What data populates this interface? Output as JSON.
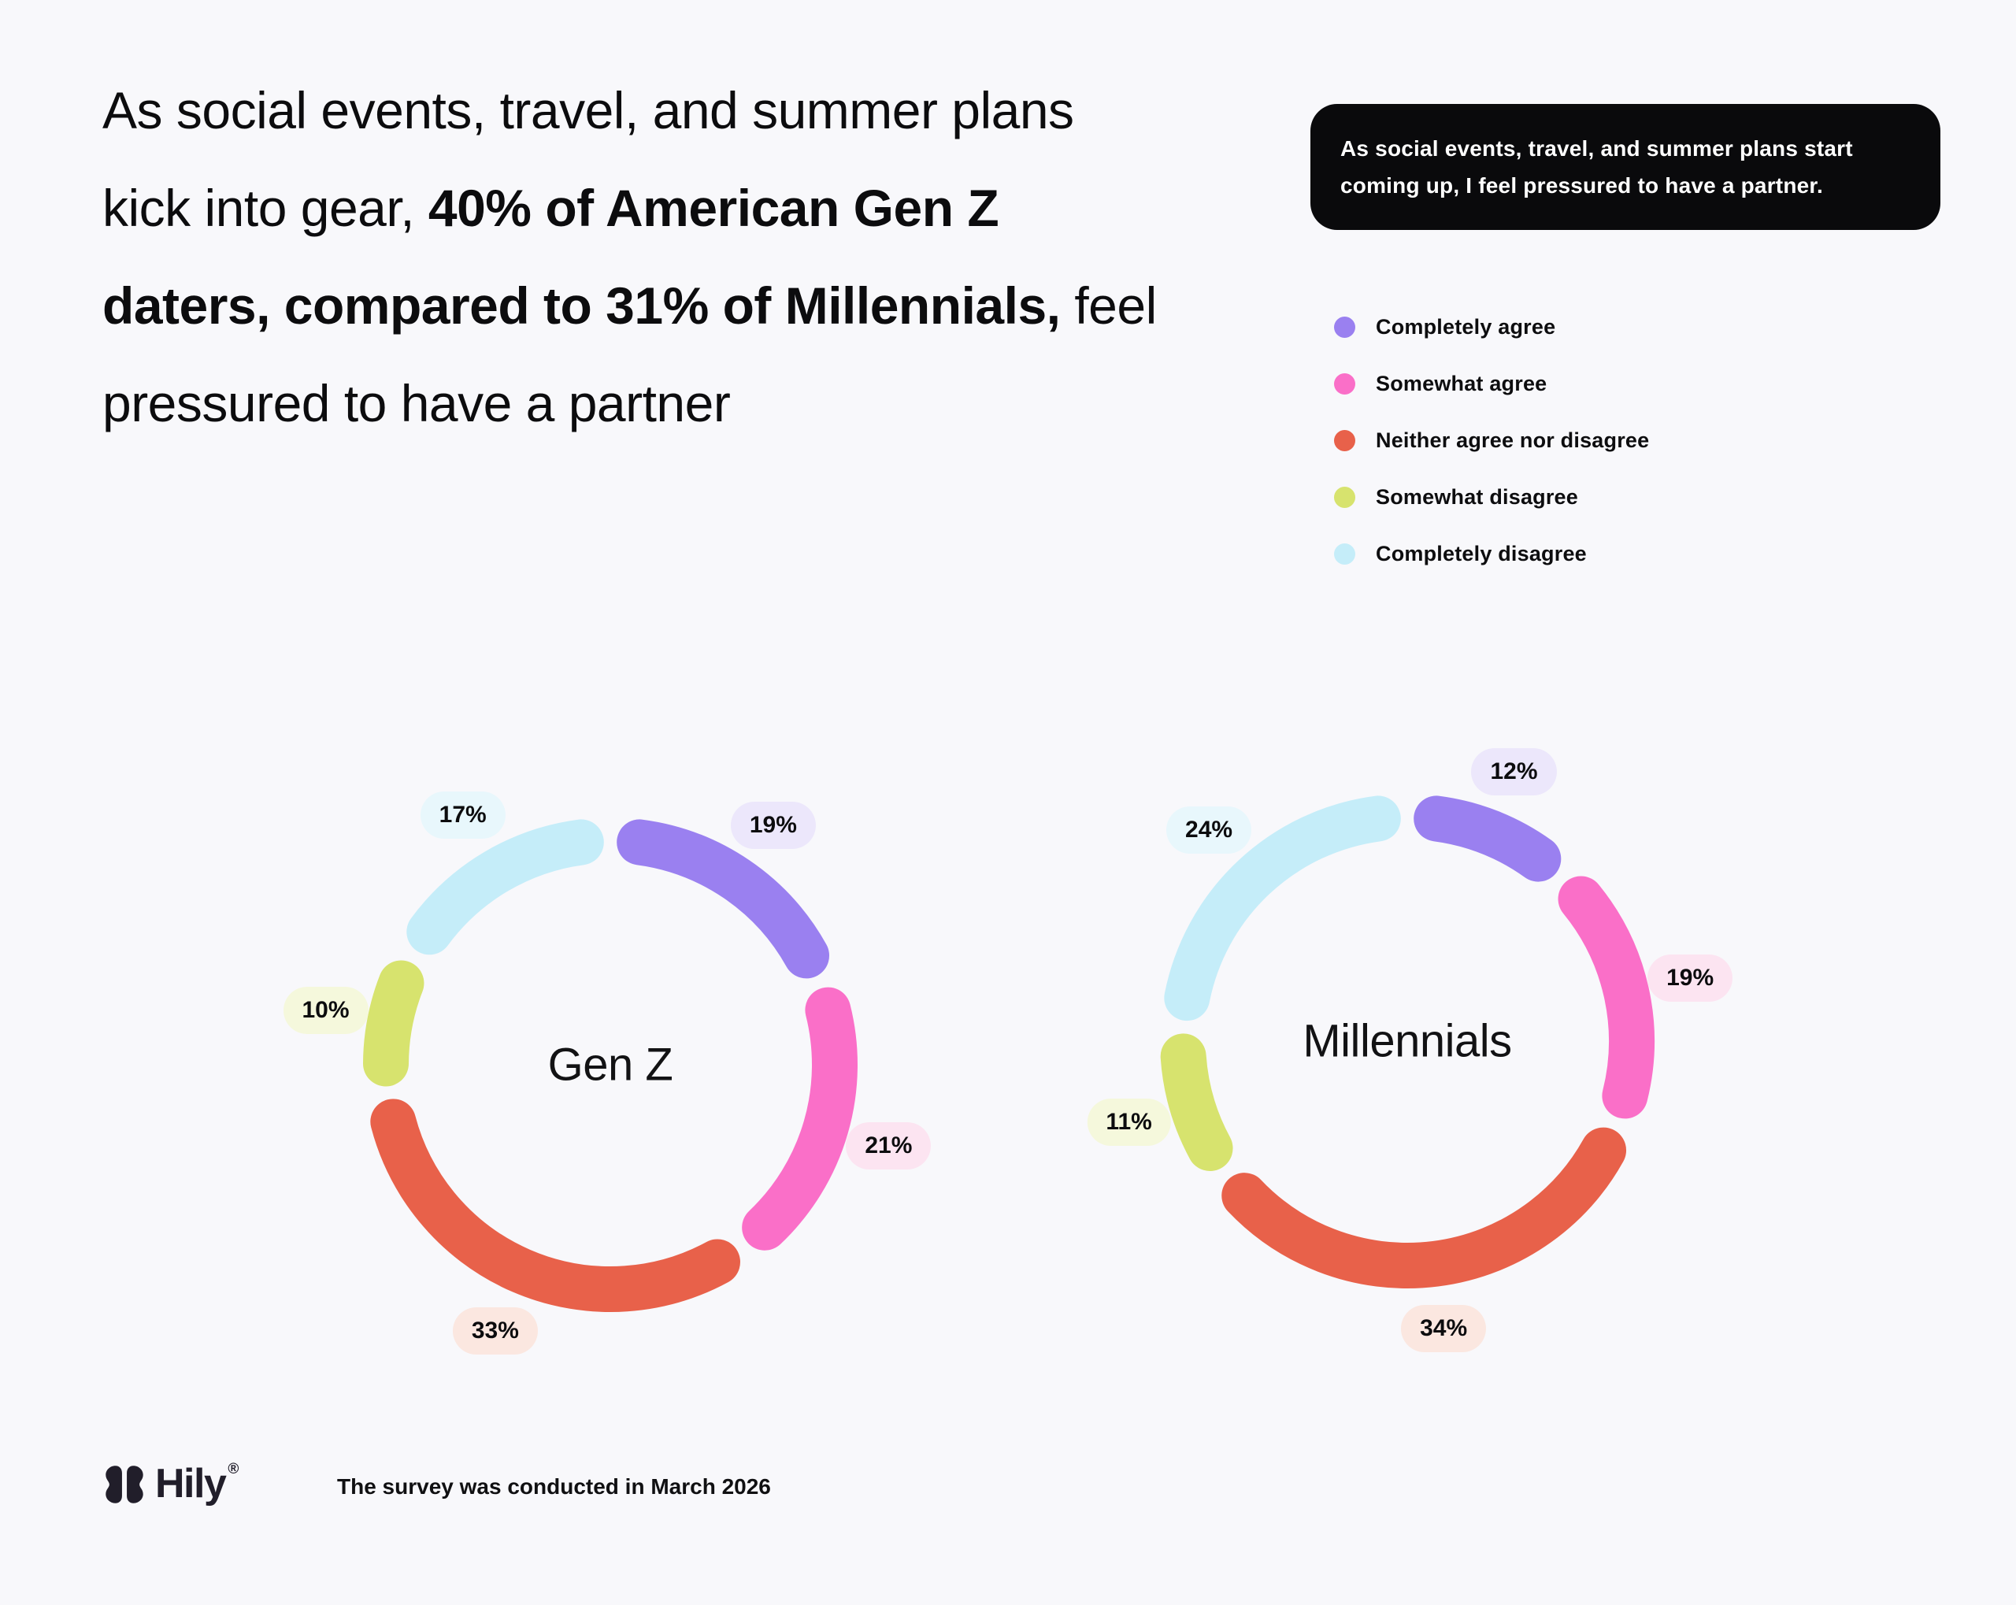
{
  "page": {
    "background": "#f8f8fb",
    "text_color": "#0c0c0e"
  },
  "headline": {
    "segments": [
      {
        "text": "As social events, travel, and summer plans kick into gear, ",
        "bold": false
      },
      {
        "text": "40% of American Gen Z daters, compared to 31% of Millennials,",
        "bold": true
      },
      {
        "text": " feel pressured to have a partner",
        "bold": false
      }
    ]
  },
  "quote": {
    "text": "As social events, travel, and summer plans start coming up, I feel pressured to have a partner.",
    "background": "#0a0a0c",
    "text_color": "#ffffff"
  },
  "legend": {
    "items": [
      {
        "label": "Completely agree",
        "color": "#9a80f0"
      },
      {
        "label": "Somewhat agree",
        "color": "#fa6fc8"
      },
      {
        "label": "Neither agree nor disagree",
        "color": "#e8614a"
      },
      {
        "label": "Somewhat disagree",
        "color": "#d7e36e"
      },
      {
        "label": "Completely disagree",
        "color": "#c5edf9"
      }
    ]
  },
  "chart_data": {
    "type": "donut",
    "categories": [
      "Completely agree",
      "Somewhat agree",
      "Neither agree nor disagree",
      "Somewhat disagree",
      "Completely disagree"
    ],
    "segment_colors": [
      "#9a80f0",
      "#fa6fc8",
      "#e8614a",
      "#d7e36e",
      "#c5edf9"
    ],
    "badge_tints": [
      "#ece7fb",
      "#fce4f1",
      "#fbe7e0",
      "#f5f8dc",
      "#e8f7fc"
    ],
    "charts": [
      {
        "slug": "gen-z",
        "title": "Gen Z",
        "values": [
          19,
          21,
          33,
          10,
          17
        ],
        "labels": [
          "19%",
          "21%",
          "33%",
          "10%",
          "17%"
        ]
      },
      {
        "slug": "millennials",
        "title": "Millennials",
        "values": [
          12,
          19,
          34,
          11,
          24
        ],
        "labels": [
          "12%",
          "19%",
          "34%",
          "11%",
          "24%"
        ]
      }
    ],
    "layout": {
      "size": 900,
      "ring_radius": 285,
      "ring_width": 58,
      "badge_radius": 368,
      "gap_trim_deg": 7.5,
      "start_angle_deg": 0,
      "legend_position": "top-right",
      "grid": false
    }
  },
  "footer": {
    "brand": "Hily",
    "registered": "®",
    "note": "The survey was conducted in March 2026",
    "brand_color": "#211e2a"
  }
}
